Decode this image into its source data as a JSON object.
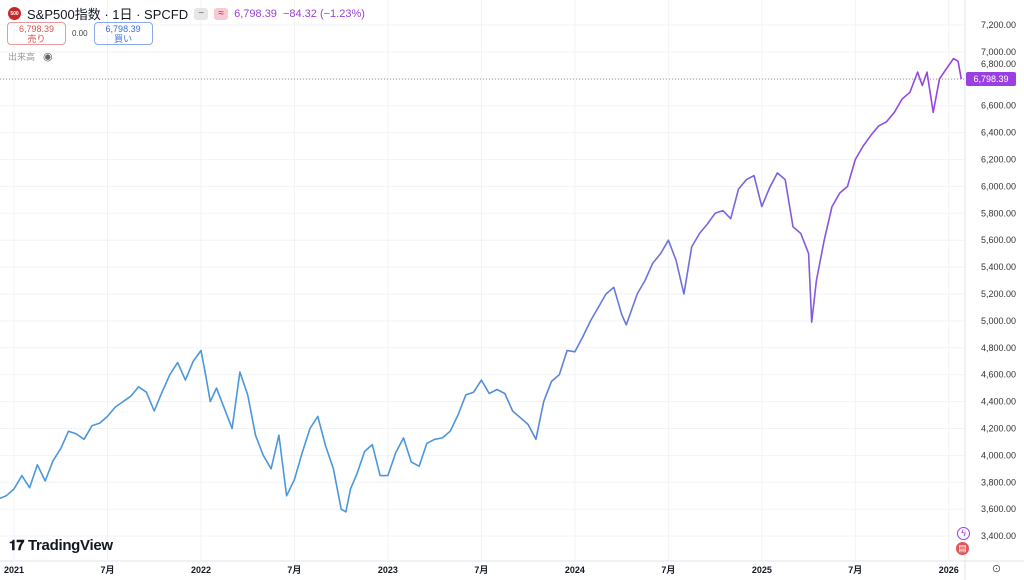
{
  "header": {
    "symbol": "S&P500指数 · 1日 · SPCFD",
    "logo_text": "500",
    "last": "6,798.39",
    "change": "−84.32 (−1.23%)"
  },
  "trade": {
    "sell_price": "6,798.39",
    "sell_label": "売り",
    "spread": "0.00",
    "buy_price": "6,798.39",
    "buy_label": "買い"
  },
  "volume_label": "出来高",
  "brand": "TradingView",
  "last_price_tag": "6,798.39",
  "colors": {
    "start": "#4a97dc",
    "end": "#9b3fe0"
  },
  "chart_data": {
    "type": "line",
    "title": "S&P500指数 · 1日 · SPCFD",
    "ylim": [
      3300,
      7300
    ],
    "yticks": [
      "7,200.00",
      "7,000.00",
      "6,800.00",
      "6,600.00",
      "6,400.00",
      "6,200.00",
      "6,000.00",
      "5,800.00",
      "5,600.00",
      "5,400.00",
      "5,200.00",
      "5,000.00",
      "4,800.00",
      "4,600.00",
      "4,400.00",
      "4,200.00",
      "4,000.00",
      "3,800.00",
      "3,600.00",
      "3,400.00"
    ],
    "ytick_values": [
      7200,
      7000,
      6800,
      6600,
      6400,
      6200,
      6000,
      5800,
      5600,
      5400,
      5200,
      5000,
      4800,
      4600,
      4400,
      4200,
      4000,
      3800,
      3600,
      3400
    ],
    "xticks": [
      {
        "label": "2021",
        "m": 0
      },
      {
        "label": "7月",
        "m": 6
      },
      {
        "label": "2022",
        "m": 12
      },
      {
        "label": "7月",
        "m": 18
      },
      {
        "label": "2023",
        "m": 24
      },
      {
        "label": "7月",
        "m": 30
      },
      {
        "label": "2024",
        "m": 36
      },
      {
        "label": "7月",
        "m": 42
      },
      {
        "label": "2025",
        "m": 48
      },
      {
        "label": "7月",
        "m": 54
      },
      {
        "label": "2026",
        "m": 60
      }
    ],
    "x_unit": "months since 2021-01",
    "points": [
      [
        -0.9,
        3680
      ],
      [
        -0.5,
        3700
      ],
      [
        0,
        3750
      ],
      [
        0.5,
        3850
      ],
      [
        1,
        3760
      ],
      [
        1.5,
        3930
      ],
      [
        2,
        3810
      ],
      [
        2.5,
        3960
      ],
      [
        3,
        4050
      ],
      [
        3.5,
        4180
      ],
      [
        4,
        4160
      ],
      [
        4.5,
        4120
      ],
      [
        5,
        4220
      ],
      [
        5.5,
        4240
      ],
      [
        6,
        4290
      ],
      [
        6.5,
        4360
      ],
      [
        7,
        4400
      ],
      [
        7.5,
        4440
      ],
      [
        8,
        4510
      ],
      [
        8.5,
        4470
      ],
      [
        9,
        4330
      ],
      [
        9.5,
        4470
      ],
      [
        10,
        4600
      ],
      [
        10.5,
        4690
      ],
      [
        11,
        4560
      ],
      [
        11.5,
        4700
      ],
      [
        12,
        4780
      ],
      [
        12.3,
        4600
      ],
      [
        12.6,
        4400
      ],
      [
        13,
        4500
      ],
      [
        13.5,
        4350
      ],
      [
        14,
        4200
      ],
      [
        14.5,
        4620
      ],
      [
        15,
        4450
      ],
      [
        15.5,
        4150
      ],
      [
        16,
        4000
      ],
      [
        16.5,
        3900
      ],
      [
        17,
        4150
      ],
      [
        17.5,
        3700
      ],
      [
        18,
        3820
      ],
      [
        18.5,
        4020
      ],
      [
        19,
        4200
      ],
      [
        19.5,
        4290
      ],
      [
        20,
        4070
      ],
      [
        20.5,
        3900
      ],
      [
        21,
        3600
      ],
      [
        21.3,
        3580
      ],
      [
        21.6,
        3750
      ],
      [
        22,
        3860
      ],
      [
        22.5,
        4030
      ],
      [
        23,
        4080
      ],
      [
        23.5,
        3850
      ],
      [
        24,
        3850
      ],
      [
        24.5,
        4020
      ],
      [
        25,
        4130
      ],
      [
        25.5,
        3950
      ],
      [
        26,
        3920
      ],
      [
        26.5,
        4090
      ],
      [
        27,
        4120
      ],
      [
        27.5,
        4130
      ],
      [
        28,
        4180
      ],
      [
        28.5,
        4300
      ],
      [
        29,
        4450
      ],
      [
        29.5,
        4470
      ],
      [
        30,
        4560
      ],
      [
        30.5,
        4460
      ],
      [
        31,
        4490
      ],
      [
        31.5,
        4460
      ],
      [
        32,
        4330
      ],
      [
        32.5,
        4280
      ],
      [
        33,
        4230
      ],
      [
        33.5,
        4120
      ],
      [
        34,
        4400
      ],
      [
        34.5,
        4550
      ],
      [
        35,
        4600
      ],
      [
        35.5,
        4780
      ],
      [
        36,
        4770
      ],
      [
        36.5,
        4880
      ],
      [
        37,
        5000
      ],
      [
        37.5,
        5100
      ],
      [
        38,
        5200
      ],
      [
        38.5,
        5250
      ],
      [
        39,
        5050
      ],
      [
        39.3,
        4970
      ],
      [
        40,
        5200
      ],
      [
        40.5,
        5300
      ],
      [
        41,
        5430
      ],
      [
        41.5,
        5500
      ],
      [
        42,
        5600
      ],
      [
        42.5,
        5450
      ],
      [
        43,
        5200
      ],
      [
        43.5,
        5550
      ],
      [
        44,
        5650
      ],
      [
        44.5,
        5720
      ],
      [
        45,
        5800
      ],
      [
        45.5,
        5820
      ],
      [
        46,
        5760
      ],
      [
        46.5,
        5980
      ],
      [
        47,
        6050
      ],
      [
        47.5,
        6080
      ],
      [
        48,
        5850
      ],
      [
        48.5,
        5990
      ],
      [
        49,
        6100
      ],
      [
        49.5,
        6050
      ],
      [
        50,
        5700
      ],
      [
        50.5,
        5650
      ],
      [
        51,
        5500
      ],
      [
        51.2,
        4990
      ],
      [
        51.5,
        5300
      ],
      [
        52,
        5600
      ],
      [
        52.5,
        5850
      ],
      [
        53,
        5950
      ],
      [
        53.5,
        6000
      ],
      [
        54,
        6200
      ],
      [
        54.5,
        6300
      ],
      [
        55,
        6380
      ],
      [
        55.5,
        6450
      ],
      [
        56,
        6480
      ],
      [
        56.5,
        6550
      ],
      [
        57,
        6650
      ],
      [
        57.5,
        6700
      ],
      [
        58,
        6850
      ],
      [
        58.3,
        6750
      ],
      [
        58.6,
        6850
      ],
      [
        59,
        6550
      ],
      [
        59.4,
        6800
      ],
      [
        60,
        6900
      ],
      [
        60.3,
        6950
      ],
      [
        60.6,
        6930
      ],
      [
        60.8,
        6798
      ]
    ]
  }
}
